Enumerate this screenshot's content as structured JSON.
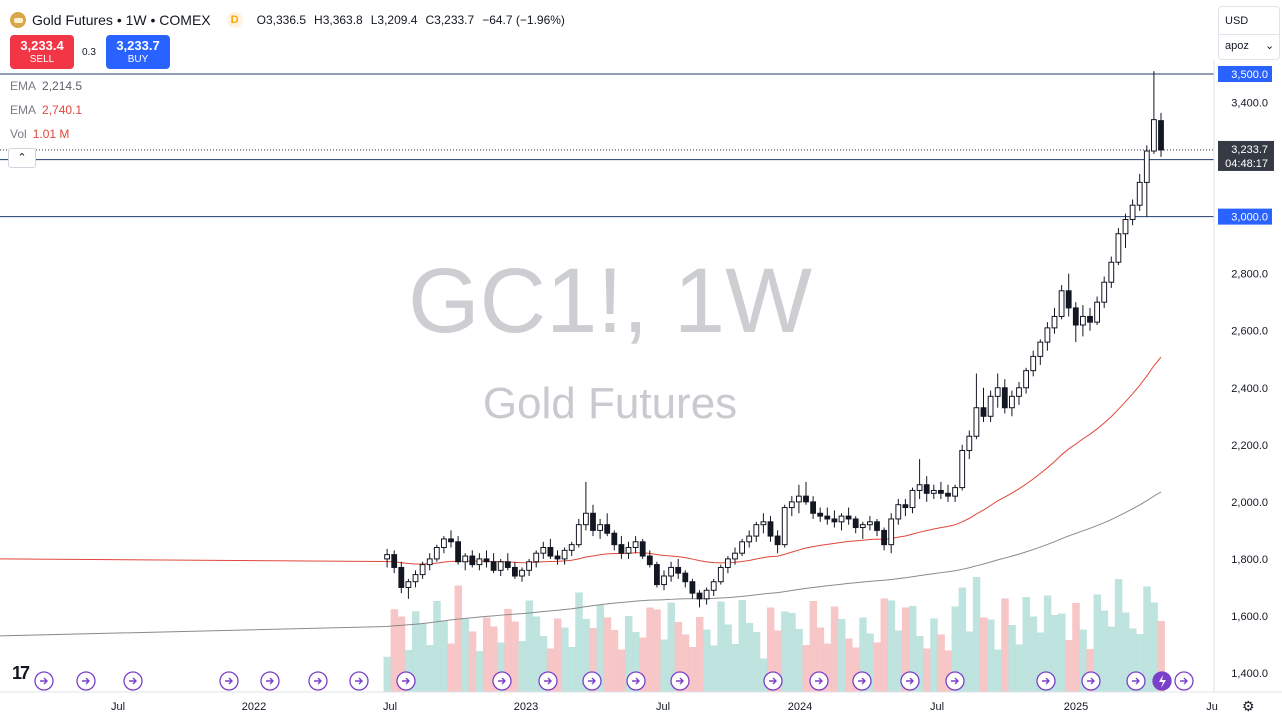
{
  "header": {
    "symbol": "Gold Futures • 1W • COMEX",
    "data_badge": "D",
    "ohlc": {
      "o_label": "O",
      "o": "3,336.5",
      "h_label": "H",
      "h": "3,363.8",
      "l_label": "L",
      "l": "3,209.4",
      "c_label": "C",
      "c": "3,233.7",
      "change": "−64.7 (−1.96%)"
    }
  },
  "trade": {
    "sell_price": "3,233.4",
    "sell_label": "SELL",
    "spread": "0.3",
    "buy_price": "3,233.7",
    "buy_label": "BUY"
  },
  "indicators": [
    {
      "name": "EMA",
      "value": "2,214.5",
      "color": "#787b86"
    },
    {
      "name": "EMA",
      "value": "2,740.1",
      "color": "#e0473a"
    },
    {
      "name": "Vol",
      "value": "1.01 M",
      "color": "#e0473a"
    }
  ],
  "collapse_glyph": "⌃",
  "price_panel": {
    "currency": "USD",
    "mode": "apoz",
    "chevron": "⌄"
  },
  "watermark": {
    "ticker": "GC1!, 1W",
    "name": "Gold Futures"
  },
  "footer": {
    "logo": "17",
    "settings_glyph": "⚙"
  },
  "colors": {
    "up": "#131722",
    "down": "#131722",
    "ema_fast": "#e0473a",
    "ema_slow": "#8a8a8a",
    "vol_up": "#b8e0db",
    "vol_down": "#f6c0c0",
    "hline": "#1f3b6f",
    "badge": "#2962ff"
  },
  "chart_data": {
    "type": "candlestick",
    "timeframe": "1W",
    "y_range": [
      1355,
      3610
    ],
    "y_ticks": [
      1400,
      1600,
      1800,
      2000,
      2200,
      2400,
      2600,
      2800,
      3000,
      3200,
      3400,
      3500
    ],
    "x_labels": [
      "Jul",
      "2022",
      "Jul",
      "2023",
      "Jul",
      "2024",
      "Jul",
      "2025",
      "Ju"
    ],
    "horizontal_lines": [
      3500,
      3200,
      3000
    ],
    "last_price": "3,233.7",
    "countdown": "04:48:17",
    "candles": [
      [
        1800,
        1835,
        1770,
        1815
      ],
      [
        1815,
        1830,
        1750,
        1770
      ],
      [
        1770,
        1790,
        1680,
        1700
      ],
      [
        1700,
        1730,
        1660,
        1720
      ],
      [
        1720,
        1760,
        1700,
        1745
      ],
      [
        1745,
        1790,
        1730,
        1780
      ],
      [
        1780,
        1820,
        1760,
        1800
      ],
      [
        1800,
        1850,
        1790,
        1840
      ],
      [
        1840,
        1880,
        1820,
        1870
      ],
      [
        1870,
        1900,
        1840,
        1860
      ],
      [
        1860,
        1880,
        1780,
        1790
      ],
      [
        1790,
        1820,
        1760,
        1810
      ],
      [
        1810,
        1830,
        1770,
        1780
      ],
      [
        1780,
        1820,
        1760,
        1800
      ],
      [
        1800,
        1830,
        1770,
        1790
      ],
      [
        1790,
        1820,
        1750,
        1760
      ],
      [
        1760,
        1800,
        1740,
        1790
      ],
      [
        1790,
        1820,
        1760,
        1770
      ],
      [
        1770,
        1790,
        1730,
        1740
      ],
      [
        1740,
        1770,
        1720,
        1760
      ],
      [
        1760,
        1800,
        1740,
        1790
      ],
      [
        1790,
        1830,
        1770,
        1820
      ],
      [
        1820,
        1860,
        1800,
        1840
      ],
      [
        1840,
        1870,
        1800,
        1810
      ],
      [
        1810,
        1830,
        1780,
        1800
      ],
      [
        1800,
        1840,
        1780,
        1830
      ],
      [
        1830,
        1860,
        1810,
        1850
      ],
      [
        1850,
        1940,
        1840,
        1920
      ],
      [
        1920,
        2070,
        1900,
        1960
      ],
      [
        1960,
        1990,
        1880,
        1900
      ],
      [
        1900,
        1940,
        1870,
        1920
      ],
      [
        1920,
        1960,
        1880,
        1890
      ],
      [
        1890,
        1900,
        1830,
        1850
      ],
      [
        1850,
        1880,
        1800,
        1820
      ],
      [
        1820,
        1860,
        1800,
        1840
      ],
      [
        1840,
        1880,
        1820,
        1860
      ],
      [
        1860,
        1870,
        1800,
        1810
      ],
      [
        1810,
        1830,
        1770,
        1780
      ],
      [
        1780,
        1790,
        1700,
        1710
      ],
      [
        1710,
        1760,
        1690,
        1740
      ],
      [
        1740,
        1790,
        1720,
        1770
      ],
      [
        1770,
        1800,
        1730,
        1750
      ],
      [
        1750,
        1760,
        1700,
        1720
      ],
      [
        1720,
        1730,
        1660,
        1680
      ],
      [
        1680,
        1690,
        1630,
        1660
      ],
      [
        1660,
        1700,
        1640,
        1690
      ],
      [
        1690,
        1730,
        1670,
        1720
      ],
      [
        1720,
        1780,
        1710,
        1770
      ],
      [
        1770,
        1810,
        1750,
        1800
      ],
      [
        1800,
        1840,
        1780,
        1820
      ],
      [
        1820,
        1870,
        1810,
        1860
      ],
      [
        1860,
        1900,
        1840,
        1880
      ],
      [
        1880,
        1930,
        1860,
        1920
      ],
      [
        1920,
        1960,
        1890,
        1930
      ],
      [
        1930,
        1950,
        1860,
        1880
      ],
      [
        1880,
        1900,
        1820,
        1850
      ],
      [
        1850,
        1990,
        1840,
        1980
      ],
      [
        1980,
        2020,
        1950,
        2000
      ],
      [
        2000,
        2060,
        1960,
        2020
      ],
      [
        2020,
        2070,
        1990,
        2000
      ],
      [
        2000,
        2020,
        1940,
        1960
      ],
      [
        1960,
        1980,
        1930,
        1950
      ],
      [
        1950,
        1980,
        1920,
        1940
      ],
      [
        1940,
        1970,
        1910,
        1930
      ],
      [
        1930,
        1960,
        1900,
        1950
      ],
      [
        1950,
        1980,
        1920,
        1940
      ],
      [
        1940,
        1950,
        1890,
        1910
      ],
      [
        1910,
        1930,
        1870,
        1920
      ],
      [
        1920,
        1950,
        1900,
        1930
      ],
      [
        1930,
        1940,
        1880,
        1900
      ],
      [
        1900,
        1910,
        1830,
        1850
      ],
      [
        1850,
        1960,
        1820,
        1940
      ],
      [
        1940,
        2010,
        1920,
        1990
      ],
      [
        1990,
        2010,
        1950,
        1980
      ],
      [
        1980,
        2050,
        1960,
        2040
      ],
      [
        2040,
        2150,
        2010,
        2060
      ],
      [
        2060,
        2090,
        2000,
        2030
      ],
      [
        2030,
        2060,
        2010,
        2040
      ],
      [
        2040,
        2070,
        2010,
        2030
      ],
      [
        2030,
        2060,
        2000,
        2020
      ],
      [
        2020,
        2060,
        2000,
        2050
      ],
      [
        2050,
        2200,
        2040,
        2180
      ],
      [
        2180,
        2250,
        2150,
        2230
      ],
      [
        2230,
        2450,
        2220,
        2330
      ],
      [
        2330,
        2400,
        2280,
        2300
      ],
      [
        2300,
        2390,
        2280,
        2370
      ],
      [
        2370,
        2450,
        2330,
        2400
      ],
      [
        2400,
        2430,
        2310,
        2330
      ],
      [
        2330,
        2390,
        2300,
        2370
      ],
      [
        2370,
        2420,
        2340,
        2400
      ],
      [
        2400,
        2470,
        2380,
        2460
      ],
      [
        2460,
        2530,
        2440,
        2510
      ],
      [
        2510,
        2570,
        2480,
        2560
      ],
      [
        2560,
        2630,
        2530,
        2610
      ],
      [
        2610,
        2680,
        2590,
        2650
      ],
      [
        2650,
        2760,
        2640,
        2740
      ],
      [
        2740,
        2800,
        2650,
        2680
      ],
      [
        2680,
        2700,
        2560,
        2620
      ],
      [
        2620,
        2690,
        2580,
        2650
      ],
      [
        2650,
        2680,
        2600,
        2630
      ],
      [
        2630,
        2720,
        2620,
        2700
      ],
      [
        2700,
        2790,
        2680,
        2770
      ],
      [
        2770,
        2860,
        2750,
        2840
      ],
      [
        2840,
        2960,
        2830,
        2940
      ],
      [
        2940,
        3010,
        2890,
        2990
      ],
      [
        2990,
        3060,
        2970,
        3040
      ],
      [
        3040,
        3150,
        3020,
        3120
      ],
      [
        3120,
        3250,
        3000,
        3230
      ],
      [
        3230,
        3510,
        3220,
        3340
      ],
      [
        3336.5,
        3363.8,
        3209.4,
        3233.7
      ]
    ],
    "ema_fast_end": 2740.1,
    "ema_slow_end": 2214.5,
    "volume_last": "1.01 M"
  }
}
